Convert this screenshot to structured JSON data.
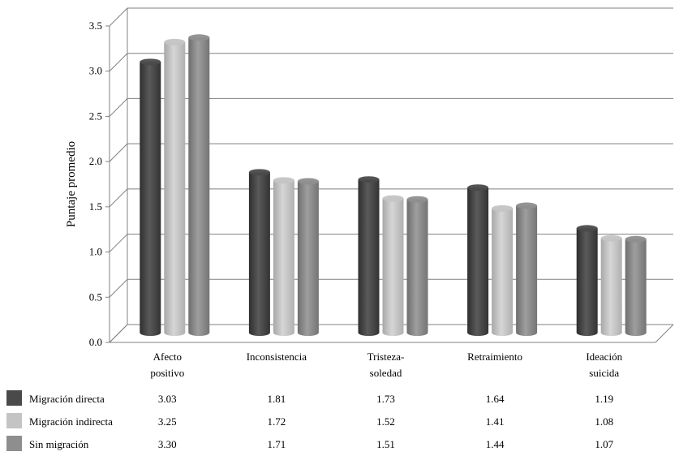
{
  "chart_data": {
    "type": "bar",
    "title": "",
    "xlabel": "",
    "ylabel": "Puntaje promedio",
    "ylim": [
      0,
      3.5
    ],
    "yticks": [
      "0.0",
      "0.5",
      "1.0",
      "1.5",
      "2.0",
      "2.5",
      "3.0",
      "3.5"
    ],
    "grid": true,
    "legend_placement": "bottom data table",
    "categories": [
      [
        "Afecto",
        "positivo"
      ],
      [
        "Inconsistencia"
      ],
      [
        "Tristeza-",
        "soledad"
      ],
      [
        "Retraimiento"
      ],
      [
        "Ideación",
        "suicida"
      ]
    ],
    "series": [
      {
        "name": "Migración directa",
        "color": "#4a4a4a",
        "values": [
          3.03,
          1.81,
          1.73,
          1.64,
          1.19
        ],
        "labels": [
          "3.03",
          "1.81",
          "1.73",
          "1.64",
          "1.19"
        ]
      },
      {
        "name": "Migración indirecta",
        "color": "#c4c4c4",
        "values": [
          3.25,
          1.72,
          1.52,
          1.41,
          1.08
        ],
        "labels": [
          "3.25",
          "1.72",
          "1.52",
          "1.41",
          "1.08"
        ]
      },
      {
        "name": "Sin migración",
        "color": "#8e8e8e",
        "values": [
          3.3,
          1.71,
          1.51,
          1.44,
          1.07
        ],
        "labels": [
          "3.30",
          "1.71",
          "1.51",
          "1.44",
          "1.07"
        ]
      }
    ]
  }
}
